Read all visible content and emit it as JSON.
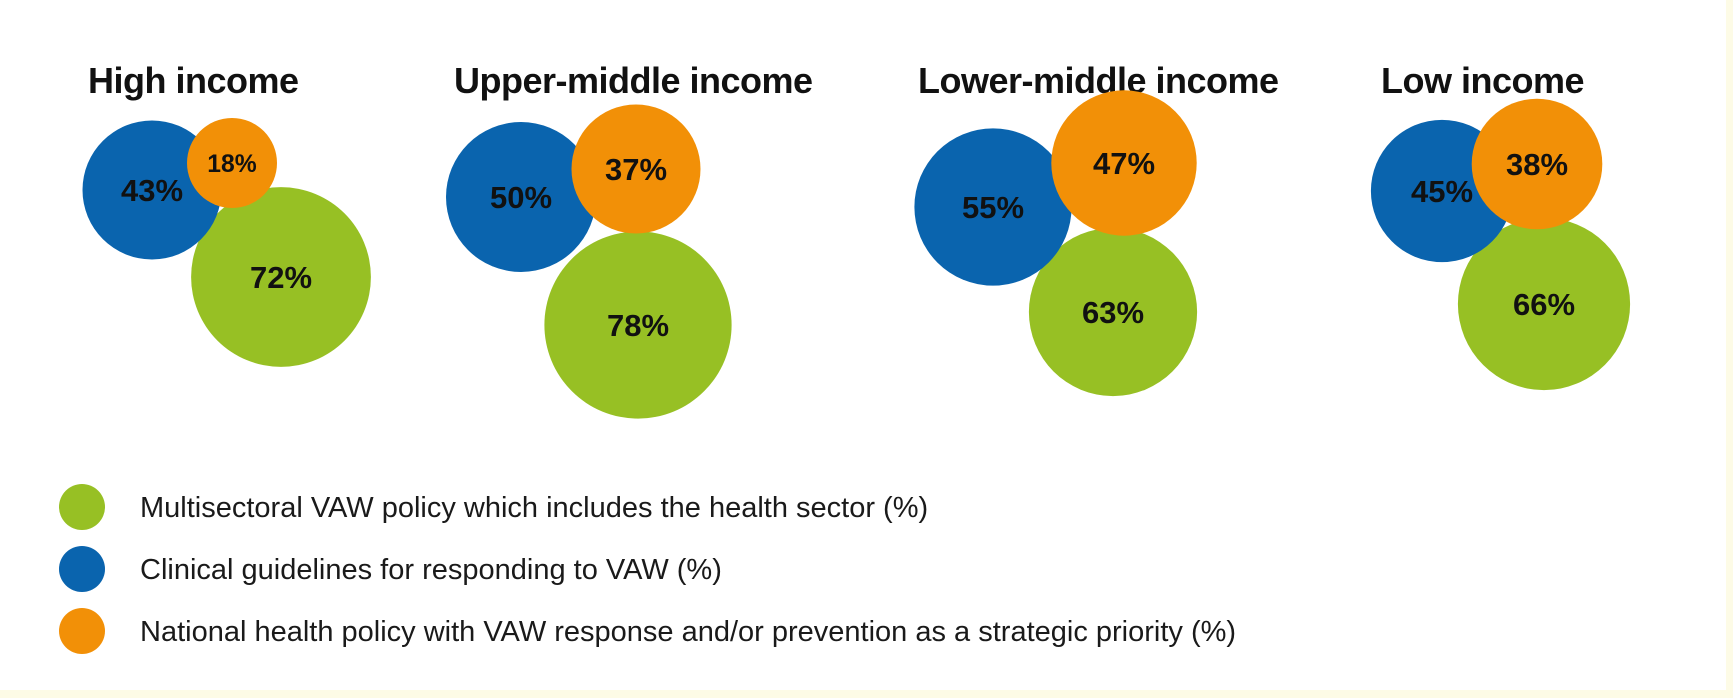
{
  "chart_data": {
    "type": "bubble",
    "series": [
      {
        "name": "Multisectoral VAW policy which includes the health sector (%)",
        "color": "#97c024"
      },
      {
        "name": "Clinical guidelines for responding to VAW (%)",
        "color": "#0a64ae"
      },
      {
        "name": "National health policy with VAW response and/or prevention as a strategic priority (%)",
        "color": "#f29007"
      }
    ],
    "groups": [
      {
        "title": "High income",
        "values": [
          72,
          43,
          18
        ]
      },
      {
        "title": "Upper-middle income",
        "values": [
          78,
          50,
          37
        ]
      },
      {
        "title": "Lower-middle income",
        "values": [
          63,
          55,
          47
        ]
      },
      {
        "title": "Low income",
        "values": [
          66,
          45,
          38
        ]
      }
    ],
    "value_suffix": "%",
    "legend_position": "bottom-left"
  }
}
